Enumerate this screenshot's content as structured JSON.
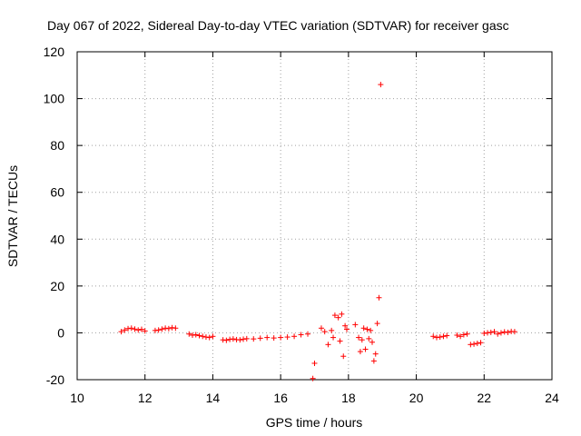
{
  "chart_data": {
    "type": "scatter",
    "title": "Day 067 of 2022, Sidereal Day-to-day VTEC variation (SDTVAR) for receiver gasc",
    "xlabel": "GPS time / hours",
    "ylabel": "SDTVAR / TECUs",
    "xlim": [
      10,
      24
    ],
    "ylim": [
      -20,
      120
    ],
    "xticks": [
      "10",
      "12",
      "14",
      "16",
      "18",
      "20",
      "22",
      "24"
    ],
    "yticks": [
      "-20",
      "0",
      "20",
      "40",
      "60",
      "80",
      "100",
      "120"
    ],
    "grid": true,
    "marker": "plus",
    "color": "#ff0000",
    "series": [
      {
        "name": "SDTVAR",
        "x": [
          11.3,
          11.4,
          11.5,
          11.6,
          11.7,
          11.8,
          11.9,
          12.0,
          12.3,
          12.4,
          12.5,
          12.6,
          12.7,
          12.8,
          12.9,
          13.3,
          13.4,
          13.5,
          13.6,
          13.7,
          13.8,
          13.9,
          14.0,
          14.3,
          14.4,
          14.5,
          14.6,
          14.7,
          14.8,
          14.9,
          15.0,
          15.2,
          15.4,
          15.6,
          15.8,
          16.0,
          16.2,
          16.4,
          16.6,
          16.8,
          16.95,
          17.0,
          17.2,
          17.3,
          17.4,
          17.5,
          17.55,
          17.6,
          17.7,
          17.75,
          17.8,
          17.85,
          17.9,
          17.95,
          18.2,
          18.3,
          18.35,
          18.4,
          18.45,
          18.5,
          18.55,
          18.6,
          18.65,
          18.7,
          18.75,
          18.8,
          18.85,
          18.9,
          18.95,
          20.5,
          20.6,
          20.7,
          20.8,
          20.9,
          21.2,
          21.3,
          21.4,
          21.5,
          21.6,
          21.7,
          21.8,
          21.9,
          22.0,
          22.1,
          22.2,
          22.3,
          22.4,
          22.5,
          22.6,
          22.7,
          22.8,
          22.9
        ],
        "y": [
          0.5,
          1.2,
          1.8,
          2.0,
          1.6,
          1.2,
          1.5,
          0.8,
          1.0,
          1.2,
          1.6,
          2.0,
          1.8,
          2.2,
          2.0,
          -0.5,
          -1.0,
          -0.8,
          -1.2,
          -1.5,
          -1.8,
          -2.0,
          -1.5,
          -3.0,
          -3.2,
          -2.8,
          -2.6,
          -2.9,
          -3.0,
          -2.7,
          -2.5,
          -2.6,
          -2.3,
          -2.0,
          -2.2,
          -2.0,
          -1.8,
          -1.5,
          -0.8,
          -0.5,
          -19.5,
          -13.0,
          2.0,
          0.5,
          -5.0,
          1.0,
          -2.0,
          7.5,
          6.5,
          -3.5,
          8.0,
          -10.0,
          3.0,
          1.5,
          3.5,
          -2.0,
          -8.0,
          -3.0,
          2.0,
          -7.0,
          1.5,
          -2.5,
          1.0,
          -4.0,
          -12.0,
          -9.0,
          4.0,
          15.0,
          106.0,
          -1.5,
          -2.0,
          -1.8,
          -1.5,
          -1.2,
          -1.0,
          -1.5,
          -0.8,
          -0.5,
          -5.0,
          -4.8,
          -4.5,
          -4.2,
          -0.2,
          0.0,
          0.2,
          0.5,
          -0.5,
          0.0,
          0.4,
          0.2,
          0.6,
          0.5
        ]
      }
    ]
  }
}
